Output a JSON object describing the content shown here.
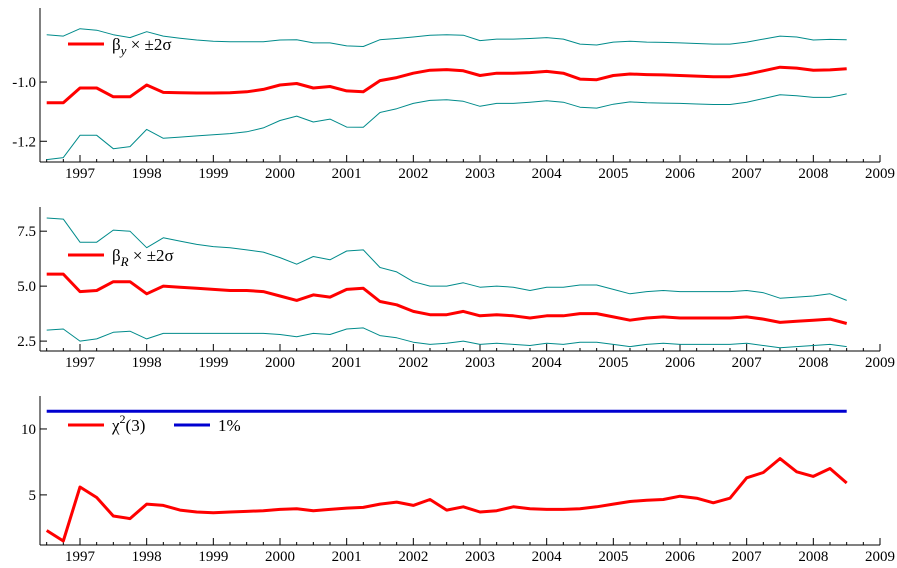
{
  "colors": {
    "estimate": "#ff0000",
    "band": "#008b8b",
    "critical": "#0000d0",
    "axis": "#000000"
  },
  "chart_data": [
    {
      "type": "line",
      "panel": "beta-y",
      "x_ticks": [
        "1997",
        "1998",
        "1999",
        "2000",
        "2001",
        "2002",
        "2003",
        "2004",
        "2005",
        "2006",
        "2007",
        "2008",
        "2009"
      ],
      "y_ticks": [
        "-1.2",
        "-1.0"
      ],
      "xlim": [
        1996.4,
        2009.0
      ],
      "ylim": [
        -1.27,
        -0.75
      ],
      "legend": {
        "symbol": "β",
        "sub": "y",
        "rest": " × ±2σ"
      },
      "x": [
        1996.5,
        1996.75,
        1997.0,
        1997.25,
        1997.5,
        1997.75,
        1998.0,
        1998.25,
        1998.5,
        1998.75,
        1999.0,
        1999.25,
        1999.5,
        1999.75,
        2000.0,
        2000.25,
        2000.5,
        2000.75,
        2001.0,
        2001.25,
        2001.5,
        2001.75,
        2002.0,
        2002.25,
        2002.5,
        2002.75,
        2003.0,
        2003.25,
        2003.5,
        2003.75,
        2004.0,
        2004.25,
        2004.5,
        2004.75,
        2005.0,
        2005.25,
        2005.5,
        2005.75,
        2006.0,
        2006.25,
        2006.5,
        2006.75,
        2007.0,
        2007.25,
        2007.5,
        2007.75,
        2008.0,
        2008.25,
        2008.5
      ],
      "series": [
        {
          "role": "estimate",
          "values": [
            -1.07,
            -1.07,
            -1.02,
            -1.02,
            -1.05,
            -1.05,
            -1.01,
            -1.035,
            -1.036,
            -1.037,
            -1.037,
            -1.036,
            -1.033,
            -1.025,
            -1.01,
            -1.005,
            -1.02,
            -1.015,
            -1.03,
            -1.033,
            -0.995,
            -0.985,
            -0.97,
            -0.96,
            -0.958,
            -0.962,
            -0.978,
            -0.97,
            -0.97,
            -0.968,
            -0.964,
            -0.97,
            -0.99,
            -0.992,
            -0.978,
            -0.973,
            -0.975,
            -0.976,
            -0.978,
            -0.98,
            -0.982,
            -0.982,
            -0.974,
            -0.962,
            -0.95,
            -0.953,
            -0.96,
            -0.959,
            -0.955
          ]
        },
        {
          "role": "upper",
          "values": [
            -0.84,
            -0.845,
            -0.82,
            -0.825,
            -0.84,
            -0.85,
            -0.83,
            -0.845,
            -0.852,
            -0.858,
            -0.862,
            -0.864,
            -0.864,
            -0.864,
            -0.858,
            -0.857,
            -0.868,
            -0.868,
            -0.878,
            -0.88,
            -0.857,
            -0.853,
            -0.848,
            -0.842,
            -0.84,
            -0.842,
            -0.86,
            -0.855,
            -0.855,
            -0.853,
            -0.85,
            -0.855,
            -0.872,
            -0.875,
            -0.865,
            -0.862,
            -0.865,
            -0.866,
            -0.868,
            -0.87,
            -0.872,
            -0.872,
            -0.865,
            -0.855,
            -0.845,
            -0.848,
            -0.858,
            -0.856,
            -0.857
          ]
        },
        {
          "role": "lower",
          "values": [
            -1.262,
            -1.255,
            -1.18,
            -1.18,
            -1.225,
            -1.218,
            -1.16,
            -1.19,
            -1.186,
            -1.182,
            -1.178,
            -1.174,
            -1.168,
            -1.155,
            -1.13,
            -1.115,
            -1.135,
            -1.125,
            -1.152,
            -1.153,
            -1.103,
            -1.09,
            -1.072,
            -1.062,
            -1.06,
            -1.065,
            -1.082,
            -1.072,
            -1.072,
            -1.068,
            -1.063,
            -1.068,
            -1.085,
            -1.088,
            -1.075,
            -1.067,
            -1.07,
            -1.071,
            -1.072,
            -1.074,
            -1.076,
            -1.076,
            -1.068,
            -1.056,
            -1.043,
            -1.046,
            -1.052,
            -1.052,
            -1.04
          ]
        }
      ]
    },
    {
      "type": "line",
      "panel": "beta-r",
      "x_ticks": [
        "1997",
        "1998",
        "1999",
        "2000",
        "2001",
        "2002",
        "2003",
        "2004",
        "2005",
        "2006",
        "2007",
        "2008",
        "2009"
      ],
      "y_ticks": [
        "2.5",
        "5.0",
        "7.5"
      ],
      "xlim": [
        1996.4,
        2009.0
      ],
      "ylim": [
        2.05,
        8.6
      ],
      "legend": {
        "symbol": "β",
        "sub": "R",
        "rest": " × ±2σ"
      },
      "x": [
        1996.5,
        1996.75,
        1997.0,
        1997.25,
        1997.5,
        1997.75,
        1998.0,
        1998.25,
        1998.5,
        1998.75,
        1999.0,
        1999.25,
        1999.5,
        1999.75,
        2000.0,
        2000.25,
        2000.5,
        2000.75,
        2001.0,
        2001.25,
        2001.5,
        2001.75,
        2002.0,
        2002.25,
        2002.5,
        2002.75,
        2003.0,
        2003.25,
        2003.5,
        2003.75,
        2004.0,
        2004.25,
        2004.5,
        2004.75,
        2005.0,
        2005.25,
        2005.5,
        2005.75,
        2006.0,
        2006.25,
        2006.5,
        2006.75,
        2007.0,
        2007.25,
        2007.5,
        2007.75,
        2008.0,
        2008.25,
        2008.5
      ],
      "series": [
        {
          "role": "estimate",
          "values": [
            5.55,
            5.55,
            4.75,
            4.8,
            5.2,
            5.2,
            4.65,
            5.0,
            4.95,
            4.9,
            4.85,
            4.8,
            4.8,
            4.75,
            4.55,
            4.35,
            4.6,
            4.5,
            4.85,
            4.9,
            4.3,
            4.15,
            3.85,
            3.7,
            3.7,
            3.85,
            3.65,
            3.7,
            3.65,
            3.55,
            3.65,
            3.65,
            3.75,
            3.75,
            3.6,
            3.45,
            3.55,
            3.6,
            3.55,
            3.55,
            3.55,
            3.55,
            3.6,
            3.5,
            3.35,
            3.4,
            3.45,
            3.5,
            3.3
          ]
        },
        {
          "role": "upper",
          "values": [
            8.1,
            8.05,
            7.0,
            7.0,
            7.55,
            7.5,
            6.75,
            7.2,
            7.05,
            6.9,
            6.8,
            6.75,
            6.65,
            6.55,
            6.3,
            6.0,
            6.35,
            6.2,
            6.6,
            6.65,
            5.85,
            5.65,
            5.2,
            5.0,
            5.0,
            5.15,
            4.95,
            5.0,
            4.95,
            4.8,
            4.95,
            4.95,
            5.05,
            5.05,
            4.85,
            4.65,
            4.75,
            4.8,
            4.75,
            4.75,
            4.75,
            4.75,
            4.8,
            4.7,
            4.45,
            4.5,
            4.55,
            4.65,
            4.35
          ]
        },
        {
          "role": "lower",
          "values": [
            3.0,
            3.05,
            2.5,
            2.6,
            2.9,
            2.95,
            2.6,
            2.85,
            2.85,
            2.85,
            2.85,
            2.85,
            2.85,
            2.85,
            2.8,
            2.7,
            2.85,
            2.8,
            3.05,
            3.1,
            2.75,
            2.65,
            2.45,
            2.35,
            2.4,
            2.5,
            2.35,
            2.4,
            2.35,
            2.3,
            2.4,
            2.35,
            2.45,
            2.45,
            2.35,
            2.25,
            2.35,
            2.4,
            2.35,
            2.35,
            2.35,
            2.35,
            2.4,
            2.3,
            2.2,
            2.25,
            2.3,
            2.35,
            2.25
          ]
        }
      ]
    },
    {
      "type": "line",
      "panel": "chi2",
      "x_ticks": [
        "1997",
        "1998",
        "1999",
        "2000",
        "2001",
        "2002",
        "2003",
        "2004",
        "2005",
        "2006",
        "2007",
        "2008",
        "2009"
      ],
      "y_ticks": [
        "5",
        "10"
      ],
      "xlim": [
        1996.4,
        2009.0
      ],
      "ylim": [
        1.2,
        12.5
      ],
      "legend": {
        "stat_label": "χ",
        "stat_sup": "2",
        "stat_rest": "(3)",
        "critical_label": "1%"
      },
      "x": [
        1996.5,
        1996.75,
        1997.0,
        1997.25,
        1997.5,
        1997.75,
        1998.0,
        1998.25,
        1998.5,
        1998.75,
        1999.0,
        1999.25,
        1999.5,
        1999.75,
        2000.0,
        2000.25,
        2000.5,
        2000.75,
        2001.0,
        2001.25,
        2001.5,
        2001.75,
        2002.0,
        2002.25,
        2002.5,
        2002.75,
        2003.0,
        2003.25,
        2003.5,
        2003.75,
        2004.0,
        2004.25,
        2004.5,
        2004.75,
        2005.0,
        2005.25,
        2005.5,
        2005.75,
        2006.0,
        2006.25,
        2006.5,
        2006.75,
        2007.0,
        2007.25,
        2007.5,
        2007.75,
        2008.0,
        2008.25,
        2008.5
      ],
      "series": [
        {
          "role": "statistic",
          "values": [
            2.3,
            1.5,
            5.6,
            4.8,
            3.4,
            3.2,
            4.3,
            4.2,
            3.85,
            3.7,
            3.65,
            3.7,
            3.75,
            3.8,
            3.9,
            3.95,
            3.8,
            3.9,
            4.0,
            4.05,
            4.3,
            4.45,
            4.2,
            4.65,
            3.85,
            4.1,
            3.7,
            3.8,
            4.1,
            3.95,
            3.9,
            3.9,
            3.95,
            4.1,
            4.3,
            4.5,
            4.6,
            4.65,
            4.9,
            4.75,
            4.4,
            4.75,
            6.3,
            6.7,
            7.75,
            6.75,
            6.4,
            7.0,
            5.9
          ]
        },
        {
          "role": "critical",
          "values": [
            11.34,
            11.34,
            11.34,
            11.34,
            11.34,
            11.34,
            11.34,
            11.34,
            11.34,
            11.34,
            11.34,
            11.34,
            11.34,
            11.34,
            11.34,
            11.34,
            11.34,
            11.34,
            11.34,
            11.34,
            11.34,
            11.34,
            11.34,
            11.34,
            11.34,
            11.34,
            11.34,
            11.34,
            11.34,
            11.34,
            11.34,
            11.34,
            11.34,
            11.34,
            11.34,
            11.34,
            11.34,
            11.34,
            11.34,
            11.34,
            11.34,
            11.34,
            11.34,
            11.34,
            11.34,
            11.34,
            11.34,
            11.34,
            11.34
          ]
        }
      ]
    }
  ]
}
